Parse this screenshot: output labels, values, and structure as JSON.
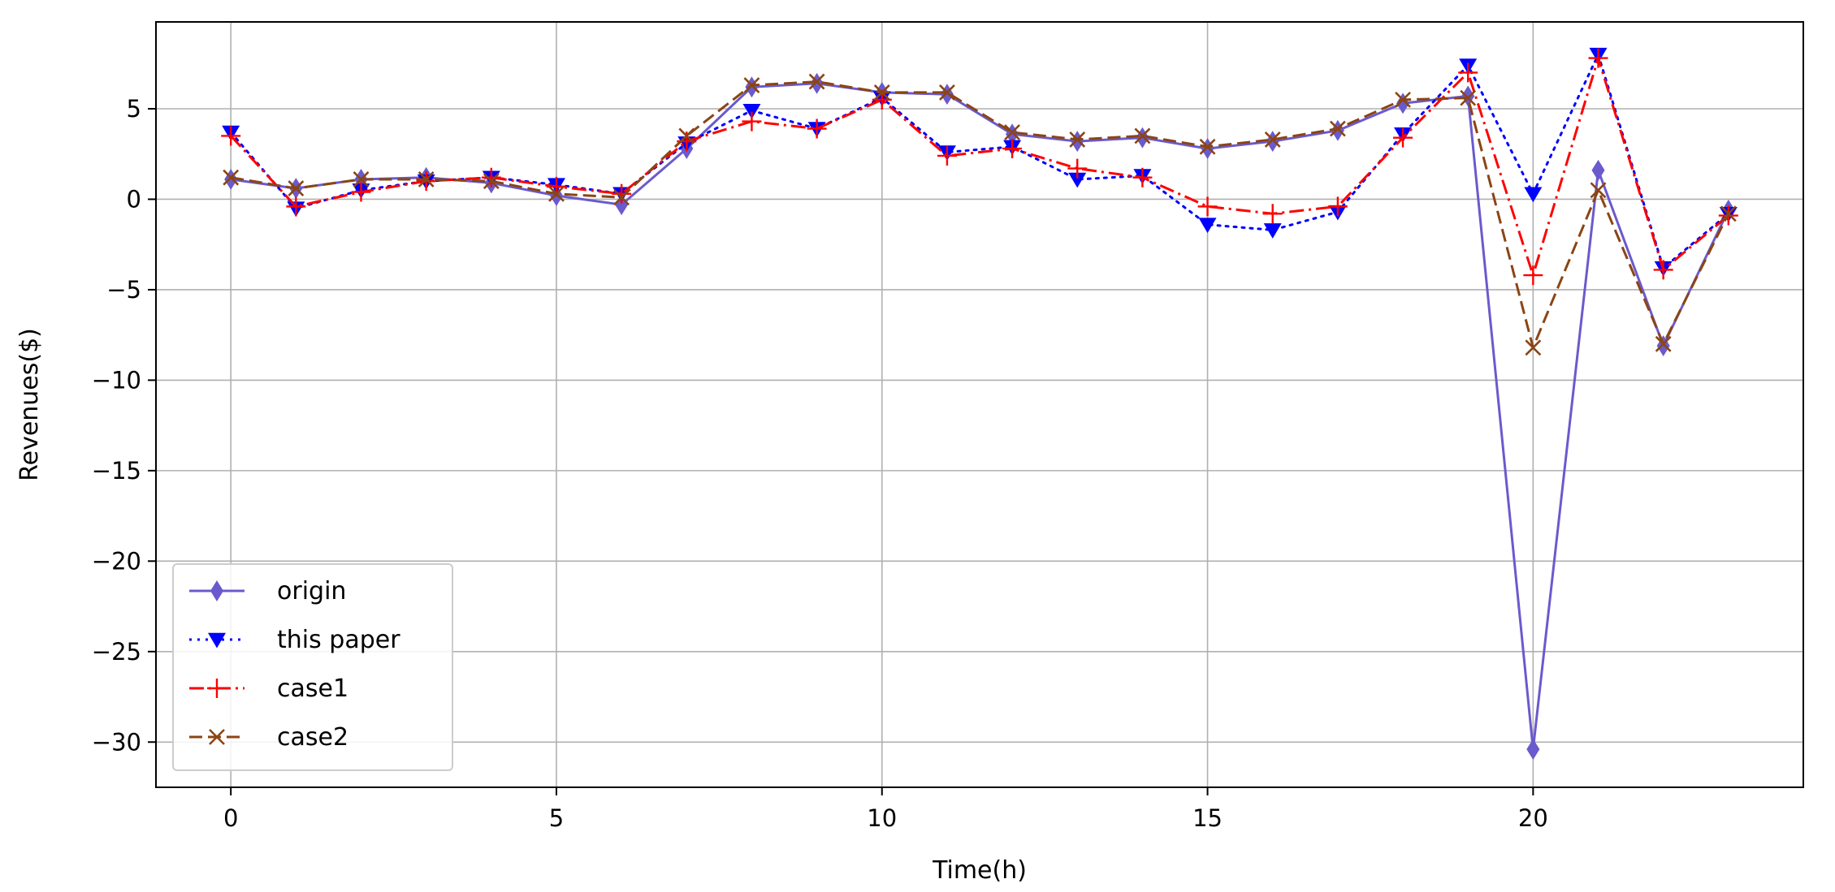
{
  "chart_data": {
    "type": "line",
    "xlabel": "Time(h)",
    "ylabel": "Revenues($)",
    "xlim": [
      -1.15,
      24.15
    ],
    "ylim": [
      -32.5,
      9.8
    ],
    "xticks": [
      0,
      5,
      10,
      15,
      20
    ],
    "yticks": [
      5,
      0,
      -5,
      -10,
      -15,
      -20,
      -25,
      -30
    ],
    "xtick_labels": [
      "0",
      "5",
      "10",
      "15",
      "20"
    ],
    "ytick_labels": [
      "5",
      "0",
      "−5",
      "−10",
      "−15",
      "−20",
      "−25",
      "−30"
    ],
    "grid": true,
    "legend_position": "lower-left",
    "x": [
      0,
      1,
      2,
      3,
      4,
      5,
      6,
      7,
      8,
      9,
      10,
      11,
      12,
      13,
      14,
      15,
      16,
      17,
      18,
      19,
      20,
      21,
      22,
      23
    ],
    "series": [
      {
        "name": "origin",
        "color": "#6a5acd",
        "marker": "diamond",
        "linestyle": "solid",
        "values": [
          1.1,
          0.6,
          1.1,
          1.2,
          0.9,
          0.2,
          -0.3,
          2.8,
          6.2,
          6.4,
          5.9,
          5.8,
          3.6,
          3.2,
          3.4,
          2.8,
          3.2,
          3.8,
          5.3,
          5.7,
          -30.4,
          1.6,
          -8.1,
          -0.6
        ]
      },
      {
        "name": "this paper",
        "color": "#0000ff",
        "marker": "triangle-down",
        "linestyle": "dotted",
        "values": [
          3.7,
          -0.5,
          0.5,
          1.0,
          1.2,
          0.8,
          0.3,
          3.1,
          4.9,
          3.9,
          5.6,
          2.6,
          2.9,
          1.1,
          1.3,
          -1.4,
          -1.7,
          -0.7,
          3.6,
          7.4,
          0.3,
          8.0,
          -3.8,
          -0.8
        ]
      },
      {
        "name": "case1",
        "color": "#ff0000",
        "marker": "plus",
        "linestyle": "dashdot",
        "values": [
          3.5,
          -0.4,
          0.4,
          1.0,
          1.2,
          0.7,
          0.3,
          3.2,
          4.3,
          3.9,
          5.5,
          2.4,
          2.8,
          1.7,
          1.2,
          -0.4,
          -0.8,
          -0.4,
          3.4,
          7.0,
          -4.2,
          7.8,
          -3.9,
          -0.9
        ]
      },
      {
        "name": "case2",
        "color": "#8b4513",
        "marker": "x",
        "linestyle": "dashed",
        "values": [
          1.2,
          0.6,
          1.1,
          1.1,
          1.0,
          0.3,
          0.1,
          3.5,
          6.3,
          6.5,
          5.9,
          5.9,
          3.7,
          3.3,
          3.5,
          2.9,
          3.3,
          3.9,
          5.5,
          5.6,
          -8.2,
          0.5,
          -8.0,
          -0.8
        ]
      }
    ]
  }
}
